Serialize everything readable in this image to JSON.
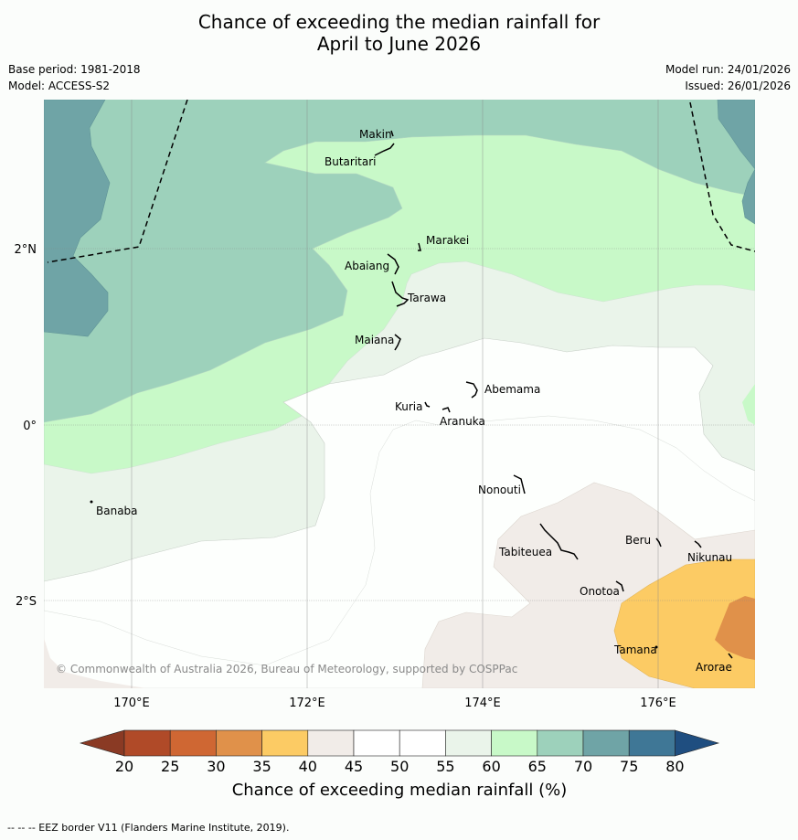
{
  "title": {
    "line1": "Chance of exceeding the median rainfall for",
    "line2": "April to June 2026"
  },
  "meta": {
    "base_period": "Base period: 1981-2018",
    "model": "Model: ACCESS-S2",
    "model_run": "Model run: 24/01/2026",
    "issued": "Issued: 26/01/2026"
  },
  "map": {
    "lat_labels": [
      "2°N",
      "0°",
      "2°S"
    ],
    "lon_labels": [
      "170°E",
      "172°E",
      "174°E",
      "176°E"
    ],
    "places": {
      "makin": "Makin",
      "butaritari": "Butaritari",
      "marakei": "Marakei",
      "abaiang": "Abaiang",
      "tarawa": "Tarawa",
      "maiana": "Maiana",
      "abemama": "Abemama",
      "kuria": "Kuria",
      "aranuka": "Aranuka",
      "nonouti": "Nonouti",
      "banaba": "Banaba",
      "tabiteuea": "Tabiteuea",
      "beru": "Beru",
      "nikunau": "Nikunau",
      "onotoa": "Onotoa",
      "tamana": "Tamana",
      "arorae": "Arorae"
    },
    "copyright": "© Commonwealth of Australia 2026, Bureau of Meteorology, supported by COSPPac"
  },
  "colorbar": {
    "ticks": [
      "20",
      "25",
      "30",
      "35",
      "40",
      "45",
      "50",
      "55",
      "60",
      "65",
      "70",
      "75",
      "80"
    ],
    "colors": [
      "#b04a28",
      "#cf6733",
      "#e0914a",
      "#fccb64",
      "#f1ece8",
      "#ffffff",
      "#ffffff",
      "#eaf4ea",
      "#c8f9c8",
      "#9dd1bb",
      "#6fa4a6",
      "#3f7796"
    ],
    "under_color": "#8a3a24",
    "over_color": "#1f4e80",
    "label": "Chance of exceeding median rainfall (%)"
  },
  "footer": "--  --  -- EEZ border V11 (Flanders Marine Institute, 2019)."
}
